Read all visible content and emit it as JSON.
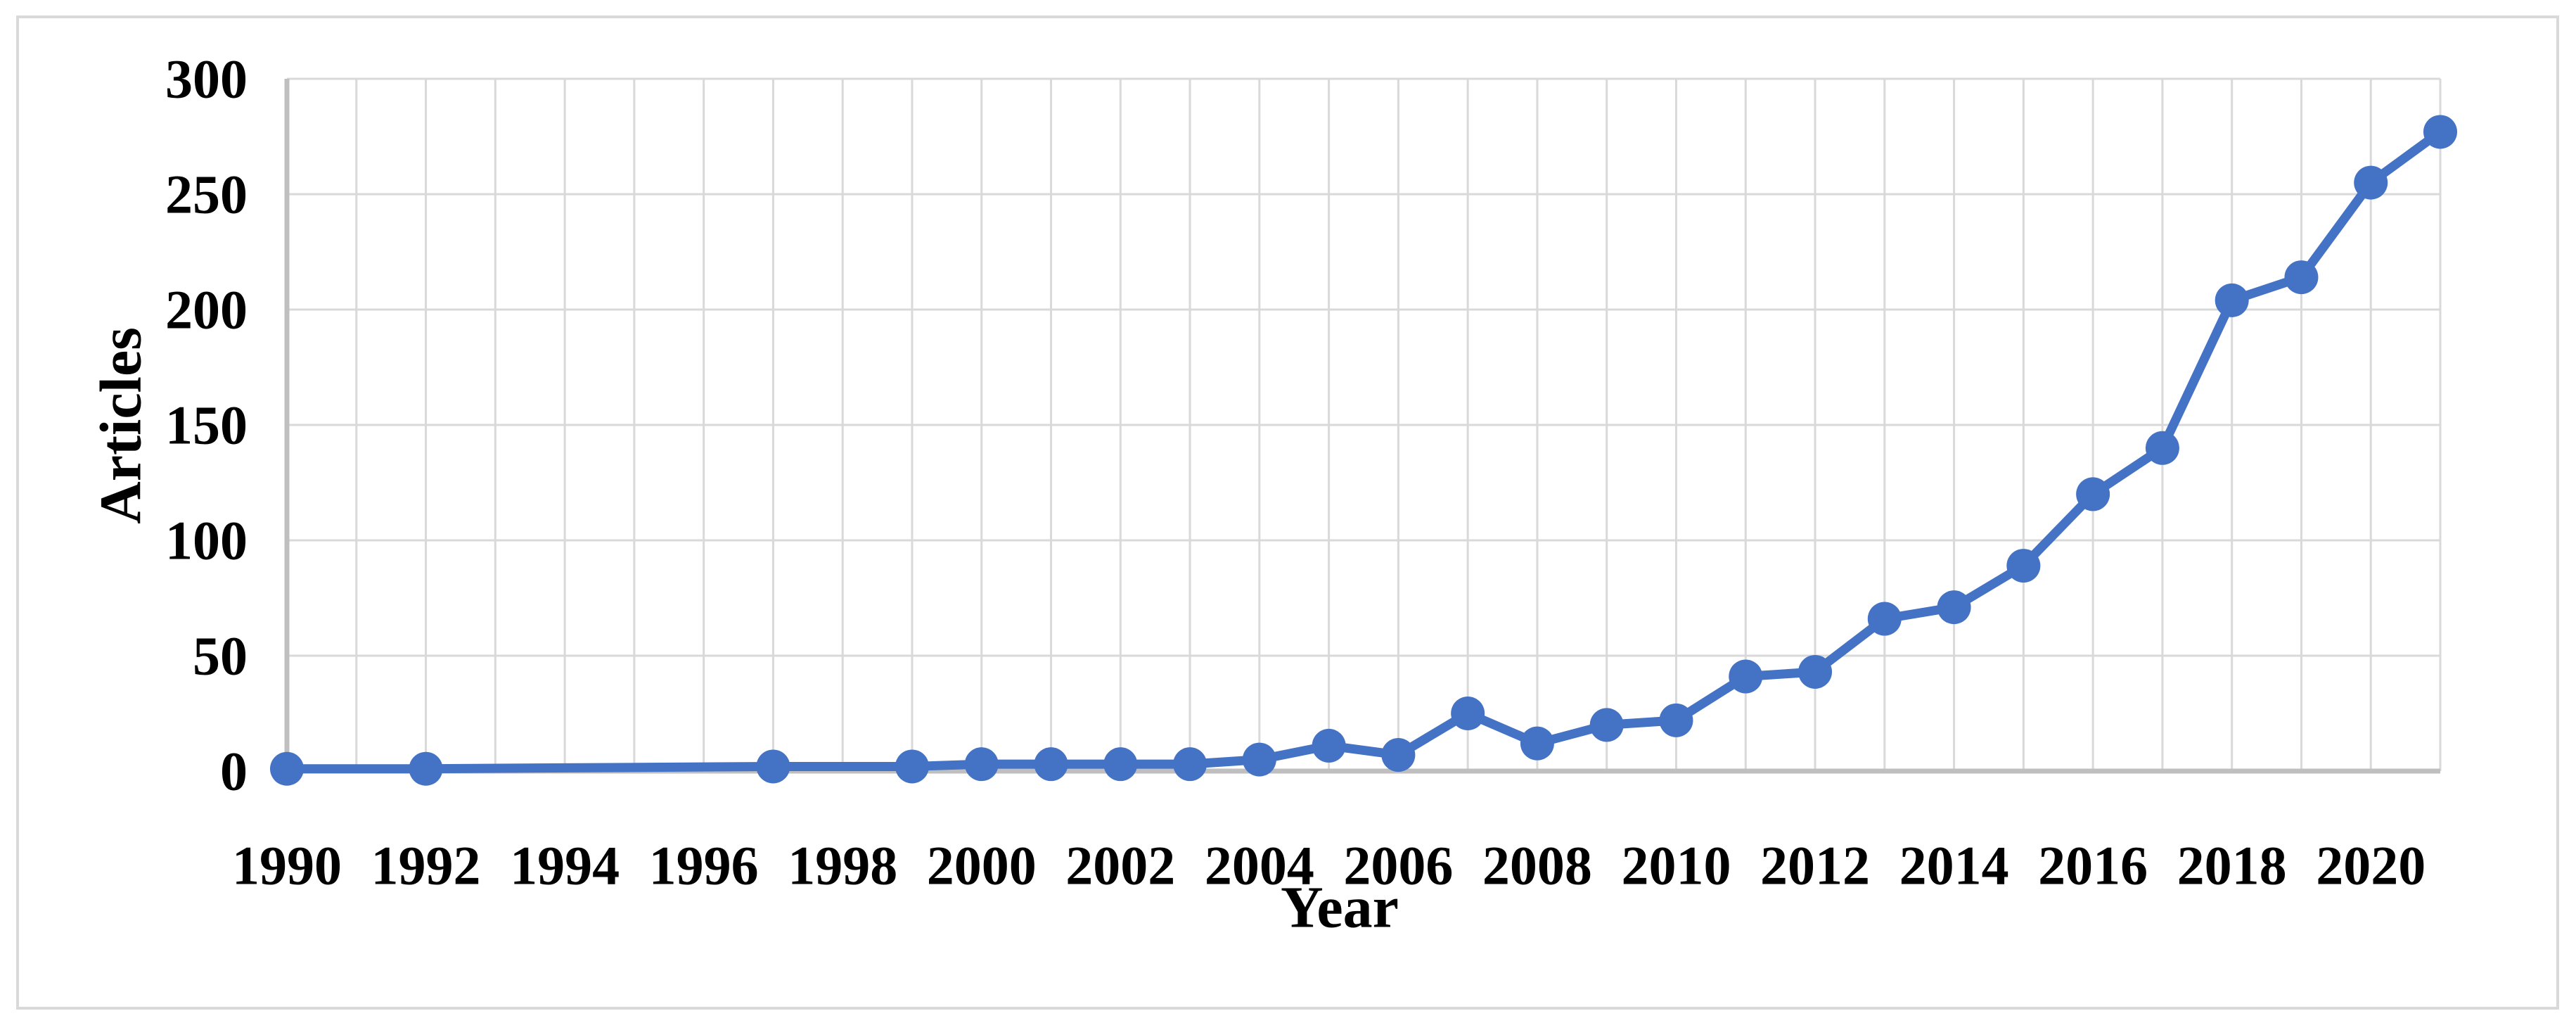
{
  "chart_data": {
    "type": "line",
    "title": "",
    "xlabel": "Year",
    "ylabel": "Articles",
    "legend_position": "none",
    "grid": "both",
    "x_gridline_every_year": true,
    "xlim": [
      1990,
      2021
    ],
    "ylim": [
      0,
      300
    ],
    "yticks": [
      0,
      50,
      100,
      150,
      200,
      250,
      300
    ],
    "xticks": [
      1990,
      1992,
      1994,
      1996,
      1998,
      2000,
      2002,
      2004,
      2006,
      2008,
      2010,
      2012,
      2014,
      2016,
      2018,
      2020
    ],
    "series": [
      {
        "name": "Articles",
        "marker": "circle",
        "points": [
          [
            1990,
            1
          ],
          [
            1992,
            1
          ],
          [
            1997,
            2
          ],
          [
            1999,
            2
          ],
          [
            2000,
            3
          ],
          [
            2001,
            3
          ],
          [
            2002,
            3
          ],
          [
            2003,
            3
          ],
          [
            2004,
            5
          ],
          [
            2005,
            11
          ],
          [
            2006,
            7
          ],
          [
            2007,
            25
          ],
          [
            2008,
            12
          ],
          [
            2009,
            20
          ],
          [
            2010,
            22
          ],
          [
            2011,
            41
          ],
          [
            2012,
            43
          ],
          [
            2013,
            66
          ],
          [
            2014,
            71
          ],
          [
            2015,
            89
          ],
          [
            2016,
            120
          ],
          [
            2017,
            140
          ],
          [
            2018,
            204
          ],
          [
            2019,
            214
          ],
          [
            2020,
            255
          ],
          [
            2021,
            277
          ]
        ]
      }
    ],
    "colors": {
      "line": "#4472C4",
      "marker": "#4472C4",
      "gridline": "#D9D9D9",
      "axis_line": "#BFBFBF",
      "figure_border": "#D9D9D9",
      "text": "#000000",
      "background": "#FFFFFF"
    }
  }
}
